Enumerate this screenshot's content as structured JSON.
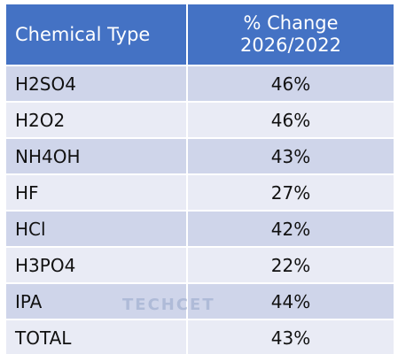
{
  "table": {
    "headers": [
      "Chemical Type",
      "% Change",
      "2026/2022"
    ],
    "rows": [
      {
        "name": "H2SO4",
        "value": "46%"
      },
      {
        "name": "H2O2",
        "value": "46%"
      },
      {
        "name": "NH4OH",
        "value": "43%"
      },
      {
        "name": "HF",
        "value": "27%"
      },
      {
        "name": "HCl",
        "value": "42%"
      },
      {
        "name": "H3PO4",
        "value": "22%"
      },
      {
        "name": "IPA",
        "value": "44%"
      },
      {
        "name": "TOTAL",
        "value": "43%"
      }
    ]
  },
  "watermark": "TECHCET",
  "colors": {
    "header_bg": "#4472c4",
    "row_odd": "#cfd5ea",
    "row_even": "#e9ebf5"
  }
}
